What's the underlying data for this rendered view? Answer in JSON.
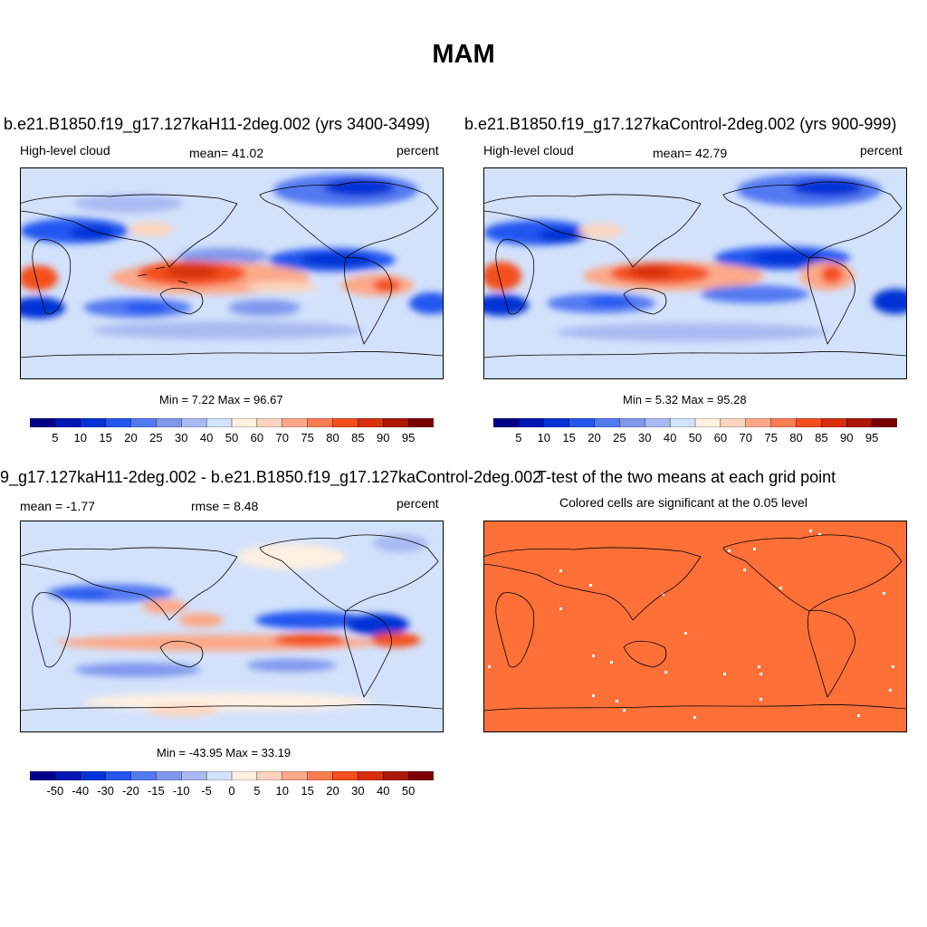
{
  "season": "MAM",
  "panels": [
    {
      "title": "b.e21.B1850.f19_g17.127kaH11-2deg.002 (yrs 3400-3499)",
      "left_label": "High-level cloud",
      "center_label": "mean=  41.02",
      "right_label": "percent",
      "minmax": "Min =   7.22 Max =  96.67"
    },
    {
      "title": "b.e21.B1850.f19_g17.127kaControl-2deg.002 (yrs 900-999)",
      "left_label": "High-level cloud",
      "center_label": "mean=  42.79",
      "right_label": "percent",
      "minmax": "Min =   5.32 Max =  95.28"
    },
    {
      "title": "9_g17.127kaH11-2deg.002 - b.e21.B1850.f19_g17.127kaControl-2deg.002",
      "left_label": "mean =  -1.77",
      "center_label": "rmse =   8.48",
      "right_label": "percent",
      "minmax": "Min = -43.95 Max =  33.19"
    },
    {
      "title": "T-test of the two means at each grid point",
      "subtitle": "Colored cells are significant at the 0.05 level"
    }
  ],
  "colorbars": {
    "abs_labels": [
      "5",
      "10",
      "15",
      "20",
      "25",
      "30",
      "40",
      "50",
      "60",
      "70",
      "75",
      "80",
      "85",
      "90",
      "95"
    ],
    "diff_labels": [
      "-50",
      "-40",
      "-30",
      "-20",
      "-15",
      "-10",
      "-5",
      "0",
      "5",
      "10",
      "15",
      "20",
      "30",
      "40",
      "50"
    ],
    "colors": [
      "#00008b",
      "#0018b4",
      "#0533d6",
      "#2457f0",
      "#5379f2",
      "#8097ee",
      "#a9b9f2",
      "#d3e2fb",
      "#fff0e1",
      "#fdd4bd",
      "#fca989",
      "#fb7c52",
      "#f44f1d",
      "#d6300b",
      "#ad1706",
      "#7d0000"
    ]
  },
  "ttest_color": "#ff7038"
}
